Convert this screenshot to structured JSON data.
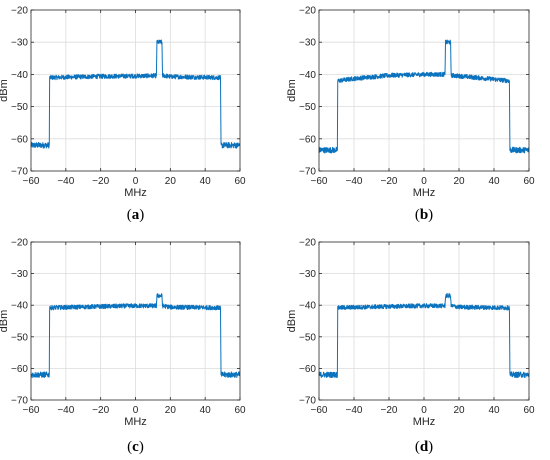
{
  "colors": {
    "trace": "#0b72bd",
    "grid": "#dcdcdc",
    "axis": "#262626"
  },
  "chart_data": [
    {
      "panel": "a",
      "caption": {
        "open": "(",
        "letter": "a",
        "close": ")"
      },
      "type": "line",
      "xlabel": "MHz",
      "ylabel": "dBm",
      "xlim": [
        -60,
        60
      ],
      "ylim": [
        -70,
        -20
      ],
      "xticks": [
        -60,
        -40,
        -20,
        0,
        20,
        40,
        60
      ],
      "yticks": [
        -70,
        -60,
        -50,
        -40,
        -30,
        -20
      ],
      "xtick_labels": [
        "−60",
        "−40",
        "−20",
        "0",
        "20",
        "40",
        "60"
      ],
      "ytick_labels": [
        "−70",
        "−60",
        "−50",
        "−40",
        "−30",
        "−20"
      ],
      "grid": true,
      "series": [
        {
          "x": [
            -60,
            -49.5,
            -49.3,
            -20,
            0,
            12,
            12.3,
            15.2,
            15.5,
            20,
            48.8,
            49.1,
            60
          ],
          "y": [
            -62,
            -62,
            -41,
            -40.6,
            -40.5,
            -40.4,
            -30,
            -30,
            -40.3,
            -40.7,
            -41,
            -62,
            -62
          ]
        }
      ]
    },
    {
      "panel": "b",
      "caption": {
        "open": "(",
        "letter": "b",
        "close": ")"
      },
      "type": "line",
      "xlabel": "MHz",
      "ylabel": "dBm",
      "xlim": [
        -60,
        60
      ],
      "ylim": [
        -70,
        -20
      ],
      "xticks": [
        -60,
        -40,
        -20,
        0,
        20,
        40,
        60
      ],
      "yticks": [
        -70,
        -60,
        -50,
        -40,
        -30,
        -20
      ],
      "xtick_labels": [
        "−60",
        "−40",
        "−20",
        "0",
        "20",
        "40",
        "60"
      ],
      "ytick_labels": [
        "−70",
        "−60",
        "−50",
        "−40",
        "−30",
        "−20"
      ],
      "grid": true,
      "series": [
        {
          "x": [
            -60,
            -49.5,
            -49.3,
            -40,
            -20,
            0,
            12,
            12.3,
            15.2,
            15.5,
            20,
            40,
            48.8,
            49.1,
            60
          ],
          "y": [
            -63.5,
            -63.5,
            -42,
            -41.3,
            -40.3,
            -40,
            -40,
            -30,
            -30,
            -40.3,
            -40.5,
            -41.5,
            -42,
            -63.5,
            -63.5
          ]
        }
      ]
    },
    {
      "panel": "c",
      "caption": {
        "open": "(",
        "letter": "c",
        "close": ")"
      },
      "type": "line",
      "xlabel": "MHz",
      "ylabel": "dBm",
      "xlim": [
        -60,
        60
      ],
      "ylim": [
        -70,
        -20
      ],
      "xticks": [
        -60,
        -40,
        -20,
        0,
        20,
        40,
        60
      ],
      "yticks": [
        -70,
        -60,
        -50,
        -40,
        -30,
        -20
      ],
      "xtick_labels": [
        "−60",
        "−40",
        "−20",
        "0",
        "20",
        "40",
        "60"
      ],
      "ytick_labels": [
        "−70",
        "−60",
        "−50",
        "−40",
        "−30",
        "−20"
      ],
      "grid": true,
      "series": [
        {
          "x": [
            -60,
            -49.5,
            -49.3,
            -20,
            0,
            12,
            12.3,
            15.2,
            15.5,
            20,
            48.8,
            49.1,
            60
          ],
          "y": [
            -62,
            -62,
            -40.8,
            -40.4,
            -40.2,
            -40.2,
            -37,
            -37,
            -40.2,
            -40.6,
            -40.8,
            -62,
            -62
          ]
        }
      ]
    },
    {
      "panel": "d",
      "caption": {
        "open": "(",
        "letter": "d",
        "close": ")"
      },
      "type": "line",
      "xlabel": "MHz",
      "ylabel": "dBm",
      "xlim": [
        -60,
        60
      ],
      "ylim": [
        -70,
        -20
      ],
      "xticks": [
        -60,
        -40,
        -20,
        0,
        20,
        40,
        60
      ],
      "yticks": [
        -70,
        -60,
        -50,
        -40,
        -30,
        -20
      ],
      "xtick_labels": [
        "−60",
        "−40",
        "−20",
        "0",
        "20",
        "40",
        "60"
      ],
      "ytick_labels": [
        "−70",
        "−60",
        "−50",
        "−40",
        "−30",
        "−20"
      ],
      "grid": true,
      "series": [
        {
          "x": [
            -60,
            -49.5,
            -49.3,
            -20,
            0,
            12,
            12.3,
            15.2,
            15.5,
            20,
            48.8,
            49.1,
            60
          ],
          "y": [
            -62,
            -62,
            -40.8,
            -40.4,
            -40.2,
            -40.2,
            -37,
            -37,
            -40.2,
            -40.6,
            -40.8,
            -62,
            -62
          ]
        }
      ]
    }
  ]
}
